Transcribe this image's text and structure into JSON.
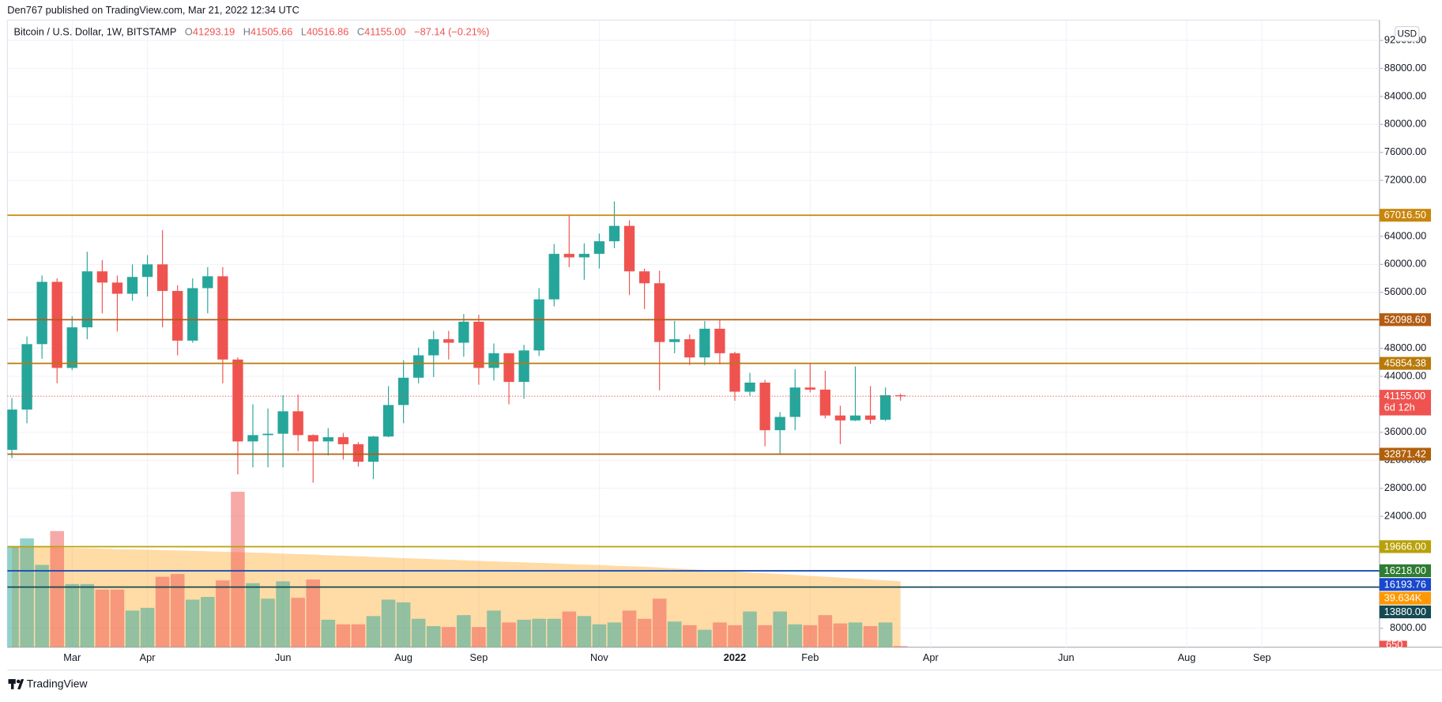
{
  "header": {
    "published": "Den767 published on TradingView.com, Mar 21, 2022 12:34 UTC",
    "brand": "TradingView"
  },
  "chart_data": {
    "type": "candlestick",
    "legend": {
      "symbol": "Bitcoin / U.S. Dollar, 1W, BITSTAMP",
      "items": [
        {
          "key": "O",
          "text": "41293.19"
        },
        {
          "key": "H",
          "text": "41505.66"
        },
        {
          "key": "L",
          "text": "40516.86"
        },
        {
          "key": "C",
          "text": "41155.00"
        }
      ],
      "change": "−87.14 (−0.21%)"
    },
    "currency": "USD",
    "open": [
      33500,
      39250,
      48600,
      57500,
      45200,
      51000,
      59000,
      57400,
      55800,
      58200,
      60000,
      56200,
      49100,
      56600,
      58300,
      46400,
      34700,
      35600,
      35800,
      39000,
      35600,
      34700,
      35300,
      34300,
      31800,
      35400,
      39900,
      43800,
      47000,
      49300,
      48800,
      51800,
      45200,
      47300,
      43200,
      47700,
      55000,
      61500,
      61000,
      61500,
      63300,
      65500,
      59000,
      57300,
      48900,
      49300,
      46700,
      50800,
      47300,
      41800,
      43100,
      36300,
      38200,
      42400,
      42100,
      38400,
      37700,
      38400,
      37800,
      41293.19
    ],
    "high": [
      40900,
      49700,
      58400,
      58000,
      52600,
      61800,
      60600,
      58400,
      60000,
      61300,
      64900,
      57000,
      58000,
      59600,
      59600,
      46700,
      40000,
      39400,
      41300,
      41400,
      35700,
      36600,
      35900,
      34600,
      35500,
      42600,
      46300,
      48100,
      50500,
      50500,
      52900,
      52800,
      48700,
      47300,
      48500,
      56600,
      62900,
      67000,
      63000,
      64400,
      69000,
      66300,
      59400,
      59100,
      51900,
      50000,
      51900,
      52100,
      47500,
      44500,
      43500,
      38900,
      45000,
      45800,
      44800,
      39800,
      45400,
      42600,
      42400,
      41505.66
    ],
    "low": [
      32300,
      37300,
      46500,
      43000,
      44900,
      49300,
      53000,
      50400,
      54800,
      55400,
      51000,
      47000,
      48800,
      53000,
      43000,
      30000,
      31000,
      31000,
      31000,
      33300,
      28800,
      32700,
      32100,
      31100,
      29300,
      35300,
      37300,
      43000,
      43900,
      46400,
      46800,
      42800,
      43400,
      40000,
      40800,
      46900,
      54000,
      59600,
      57800,
      59400,
      62300,
      55600,
      53600,
      42000,
      47300,
      45600,
      45600,
      45700,
      40500,
      41200,
      34000,
      32900,
      36300,
      41700,
      38000,
      34300,
      37600,
      37200,
      37600,
      40516.86
    ],
    "close": [
      39250,
      48600,
      57500,
      45200,
      51000,
      59000,
      57400,
      55800,
      58200,
      60000,
      56200,
      49100,
      56600,
      58300,
      46400,
      34700,
      35600,
      35800,
      39000,
      35600,
      34700,
      35300,
      34300,
      31800,
      35400,
      39900,
      43800,
      47000,
      49300,
      48800,
      51800,
      45200,
      47300,
      43200,
      47700,
      55000,
      61500,
      61000,
      61500,
      63300,
      65500,
      59000,
      57300,
      48900,
      49300,
      46700,
      50800,
      47300,
      41800,
      43100,
      36300,
      38200,
      42400,
      42100,
      38400,
      37700,
      38400,
      37800,
      41300,
      41155
    ],
    "close_label": "41155.00",
    "countdown": "6d 12h",
    "volume": [
      60500,
      65450,
      49500,
      69850,
      37950,
      37950,
      34650,
      34650,
      22000,
      23650,
      42350,
      44000,
      28600,
      30250,
      40150,
      93500,
      38500,
      29150,
      39600,
      29700,
      40700,
      16500,
      13750,
      13750,
      18700,
      28600,
      26950,
      17050,
      12650,
      12100,
      19250,
      12100,
      22000,
      14850,
      16500,
      17050,
      17050,
      21450,
      18700,
      13750,
      14850,
      22000,
      17050,
      29150,
      15400,
      13200,
      10450,
      14850,
      13200,
      21450,
      13200,
      21450,
      13750,
      13200,
      19250,
      14300,
      14850,
      12650,
      14850,
      650
    ],
    "volume_ma": [
      60500,
      60300,
      60100,
      59900,
      59700,
      59500,
      59300,
      59000,
      58800,
      58600,
      58400,
      58200,
      58000,
      57700,
      57400,
      57200,
      56900,
      56650,
      56300,
      56000,
      55700,
      55300,
      55000,
      54700,
      54300,
      54000,
      53600,
      53300,
      52900,
      52600,
      52250,
      51900,
      51600,
      51300,
      51000,
      50700,
      50400,
      50000,
      49700,
      49400,
      49000,
      48700,
      48400,
      47900,
      47400,
      46900,
      46400,
      45900,
      45400,
      44900,
      44500,
      44000,
      43500,
      42900,
      42400,
      41800,
      41300,
      40700,
      40200,
      39634
    ],
    "volume_ma_label": "39.634K",
    "up_color": "#26a69a",
    "down_color": "#ef5350",
    "volume_ma_color": "#ff9800",
    "ylim": [
      5300,
      94900
    ],
    "yticks": [
      {
        "value": 8000,
        "label": "8000.00"
      },
      {
        "value": 24000,
        "label": "24000.00"
      },
      {
        "value": 28000,
        "label": "28000.00"
      },
      {
        "value": 32000,
        "label": "32000.00"
      },
      {
        "value": 36000,
        "label": "36000.00"
      },
      {
        "value": 44000,
        "label": "44000.00"
      },
      {
        "value": 48000,
        "label": "48000.00"
      },
      {
        "value": 56000,
        "label": "56000.00"
      },
      {
        "value": 60000,
        "label": "60000.00"
      },
      {
        "value": 64000,
        "label": "64000.00"
      },
      {
        "value": 72000,
        "label": "72000.00"
      },
      {
        "value": 76000,
        "label": "76000.00"
      },
      {
        "value": 80000,
        "label": "80000.00"
      },
      {
        "value": 84000,
        "label": "84000.00"
      },
      {
        "value": 88000,
        "label": "88000.00"
      },
      {
        "value": 92000,
        "label": "92000.00"
      }
    ],
    "xlim": [
      -0.3,
      90.8
    ],
    "xticks": [
      {
        "value": 4,
        "label": "Mar"
      },
      {
        "value": 9,
        "label": "Apr"
      },
      {
        "value": 18,
        "label": "Jun"
      },
      {
        "value": 26,
        "label": "Aug"
      },
      {
        "value": 31,
        "label": "Sep"
      },
      {
        "value": 39,
        "label": "Nov"
      },
      {
        "value": 48,
        "label": "2022"
      },
      {
        "value": 53,
        "label": "Feb"
      },
      {
        "value": 61,
        "label": "Apr"
      },
      {
        "value": 70,
        "label": "Jun"
      },
      {
        "value": 78,
        "label": "Aug"
      },
      {
        "value": 83,
        "label": "Sep"
      }
    ],
    "grid": true,
    "price_lines": [
      {
        "value": 67016.5,
        "label": "67016.50",
        "color": "#c8860d"
      },
      {
        "value": 52098.6,
        "label": "52098.60",
        "color": "#b35c12"
      },
      {
        "value": 45854.38,
        "label": "45854.38",
        "color": "#b87a0a"
      },
      {
        "value": 32871.42,
        "label": "32871.42",
        "color": "#b05f0a"
      },
      {
        "value": 19666,
        "label": "19666.00",
        "color": "#b8a10a"
      },
      {
        "value": 16218,
        "label": "16218.00",
        "color": "#2e7d32"
      },
      {
        "value": 16193.76,
        "label": "16193.76",
        "color": "#1848cc"
      },
      {
        "value": 13880,
        "label": "13880.00",
        "color": "#154a52"
      }
    ]
  }
}
